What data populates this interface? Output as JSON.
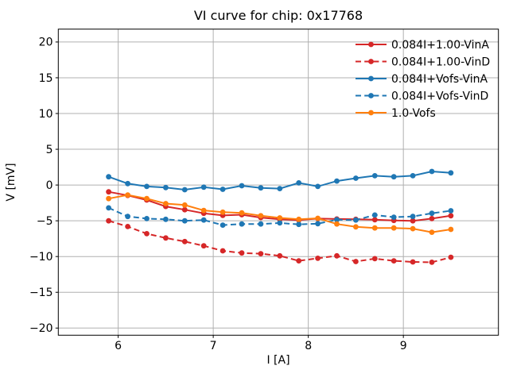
{
  "chart_data": {
    "type": "line",
    "title": "VI curve for chip: 0x17768",
    "xlabel": "I [A]",
    "ylabel": "V [mV]",
    "xlim": [
      5.37,
      10.0
    ],
    "ylim": [
      -21.0,
      21.8
    ],
    "xticks": [
      6,
      7,
      8,
      9
    ],
    "yticks": [
      20,
      15,
      10,
      5,
      0,
      -5,
      -10,
      -15,
      -20
    ],
    "grid": true,
    "legend_position": "upper right",
    "legend_frame": false,
    "x": [
      5.9,
      6.1,
      6.3,
      6.5,
      6.7,
      6.9,
      7.1,
      7.3,
      7.5,
      7.7,
      7.9,
      8.1,
      8.3,
      8.5,
      8.7,
      8.9,
      9.1,
      9.3,
      9.5
    ],
    "series": [
      {
        "name": "0.084I+1.00-VinA",
        "color": "#d62728",
        "linestyle": "solid",
        "marker": "circle",
        "values": [
          -0.95,
          -1.45,
          -2.1,
          -3.0,
          -3.45,
          -3.95,
          -4.25,
          -4.15,
          -4.55,
          -4.8,
          -4.9,
          -4.7,
          -4.75,
          -4.8,
          -4.85,
          -4.95,
          -5.0,
          -4.7,
          -4.3
        ]
      },
      {
        "name": "0.084I+1.00-VinD",
        "color": "#d62728",
        "linestyle": "dashed",
        "marker": "circle",
        "values": [
          -5.0,
          -5.8,
          -6.8,
          -7.4,
          -7.9,
          -8.5,
          -9.2,
          -9.5,
          -9.6,
          -9.9,
          -10.6,
          -10.25,
          -9.9,
          -10.7,
          -10.3,
          -10.6,
          -10.75,
          -10.8,
          -10.1
        ]
      },
      {
        "name": "0.084I+Vofs-VinA",
        "color": "#1f77b4",
        "linestyle": "solid",
        "marker": "circle",
        "values": [
          1.15,
          0.2,
          -0.2,
          -0.35,
          -0.65,
          -0.3,
          -0.6,
          -0.1,
          -0.4,
          -0.5,
          0.3,
          -0.2,
          0.55,
          0.95,
          1.3,
          1.15,
          1.3,
          1.9,
          1.7
        ]
      },
      {
        "name": "0.084I+Vofs-VinD",
        "color": "#1f77b4",
        "linestyle": "dashed",
        "marker": "circle",
        "values": [
          -3.2,
          -4.4,
          -4.7,
          -4.8,
          -5.0,
          -4.9,
          -5.6,
          -5.45,
          -5.45,
          -5.3,
          -5.5,
          -5.4,
          -4.85,
          -4.9,
          -4.2,
          -4.5,
          -4.4,
          -3.95,
          -3.6
        ]
      },
      {
        "name": "1.0-Vofs",
        "color": "#ff7f0e",
        "linestyle": "solid",
        "marker": "circle",
        "values": [
          -1.9,
          -1.4,
          -1.9,
          -2.6,
          -2.8,
          -3.55,
          -3.8,
          -3.9,
          -4.3,
          -4.6,
          -4.8,
          -4.65,
          -5.45,
          -5.85,
          -6.0,
          -6.0,
          -6.1,
          -6.6,
          -6.2
        ]
      }
    ],
    "colors": {
      "grid": "#b0b0b0",
      "spine": "#000000",
      "text": "#000000",
      "background": "#ffffff"
    }
  }
}
